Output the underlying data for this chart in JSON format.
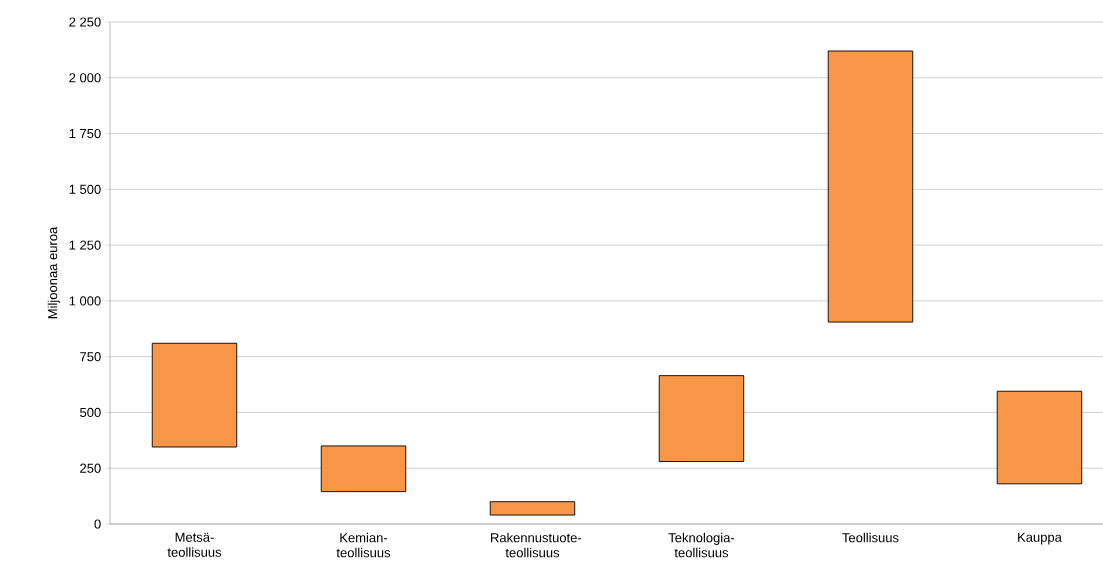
{
  "chart_data": {
    "type": "bar",
    "ylabel": "Miljoonaa euroa",
    "categories": [
      "Metsä-teollisuus",
      "Kemian-teollisuus",
      "Rakennustuote-teollisuus",
      "Teknologia-teollisuus",
      "Teollisuus",
      "Kauppa"
    ],
    "base": [
      345,
      145,
      40,
      280,
      905,
      180
    ],
    "values": [
      465,
      205,
      60,
      385,
      1215,
      415
    ],
    "color": "#f79646",
    "ylim": [
      0,
      2250
    ],
    "yticks": [
      0,
      250,
      500,
      750,
      {
        "value": 1000,
        "label": "1 000"
      },
      {
        "value": 1250,
        "label": "1 250"
      },
      {
        "value": 1500,
        "label": "1 500"
      },
      {
        "value": 1750,
        "label": "1 750"
      },
      {
        "value": 2000,
        "label": "2 000"
      },
      {
        "value": 2250,
        "label": "2 250"
      }
    ],
    "grid": "y",
    "legend": false
  }
}
